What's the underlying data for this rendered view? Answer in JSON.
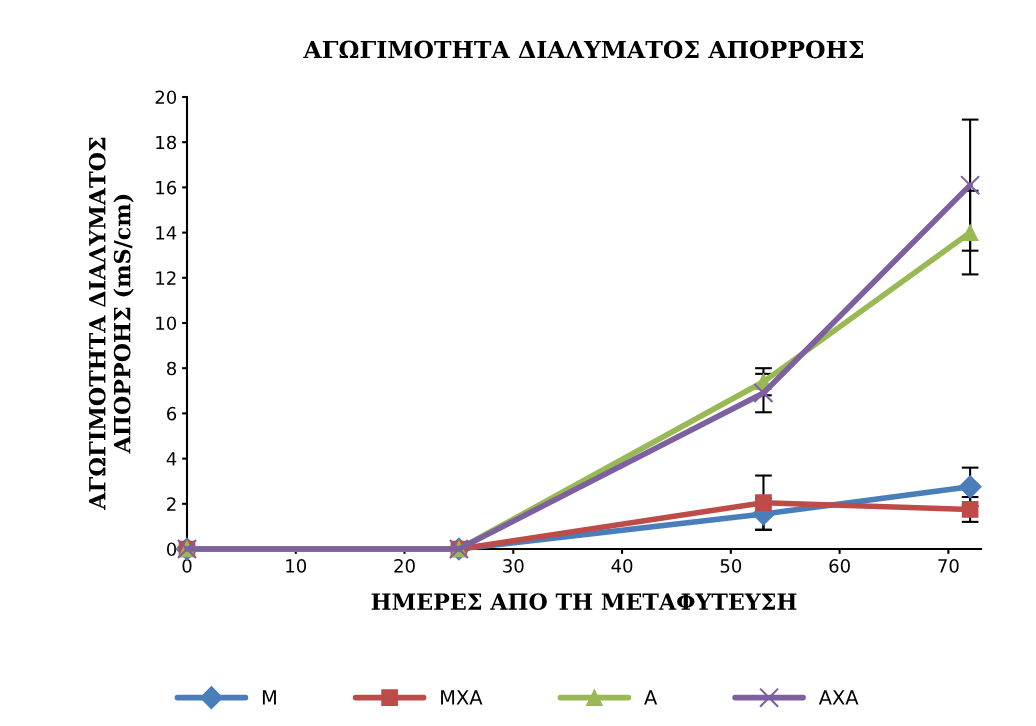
{
  "chart_data": {
    "type": "line",
    "title": "ΑΓΩΓΙΜΟΤΗΤΑ ΔΙΑΛΥΜΑΤΟΣ ΑΠΟΡΡΟΗΣ",
    "xlabel": "ΗΜΕΡΕΣ ΑΠΟ ΤΗ ΜΕΤΑΦΥΤΕΥΣΗ",
    "ylabel": "ΑΓΩΓΙΜΟΤΗΤΑ ΔΙΑΛΥΜΑΤΟΣ\nΑΠΟΡΡΟΗΣ (mS/cm)",
    "x": [
      0,
      25,
      53,
      72
    ],
    "series": [
      {
        "name": "M",
        "color": "#4a7ebb",
        "marker": "diamond",
        "values": [
          0,
          0,
          1.55,
          2.75
        ],
        "errors": [
          null,
          null,
          0.7,
          0.85
        ]
      },
      {
        "name": "MXA",
        "color": "#be4b48",
        "marker": "square",
        "values": [
          0,
          0,
          2.05,
          1.75
        ],
        "errors": [
          null,
          null,
          1.2,
          0.55
        ]
      },
      {
        "name": "A",
        "color": "#98b954",
        "marker": "triangle",
        "values": [
          0,
          0,
          7.4,
          14
        ],
        "errors": [
          null,
          null,
          0.6,
          1.85
        ]
      },
      {
        "name": "AXA",
        "color": "#7d60a0",
        "marker": "cross",
        "values": [
          0,
          0,
          6.9,
          16.1
        ],
        "errors": [
          null,
          null,
          0.85,
          2.9
        ]
      }
    ],
    "xlim": [
      0,
      73
    ],
    "xticks": [
      0,
      10,
      20,
      30,
      40,
      50,
      60,
      70
    ],
    "ylim": [
      0,
      20
    ],
    "yticks": [
      0,
      2,
      4,
      6,
      8,
      10,
      12,
      14,
      16,
      18,
      20
    ],
    "grid": false,
    "legend": "bottom",
    "line_style": "solid"
  }
}
